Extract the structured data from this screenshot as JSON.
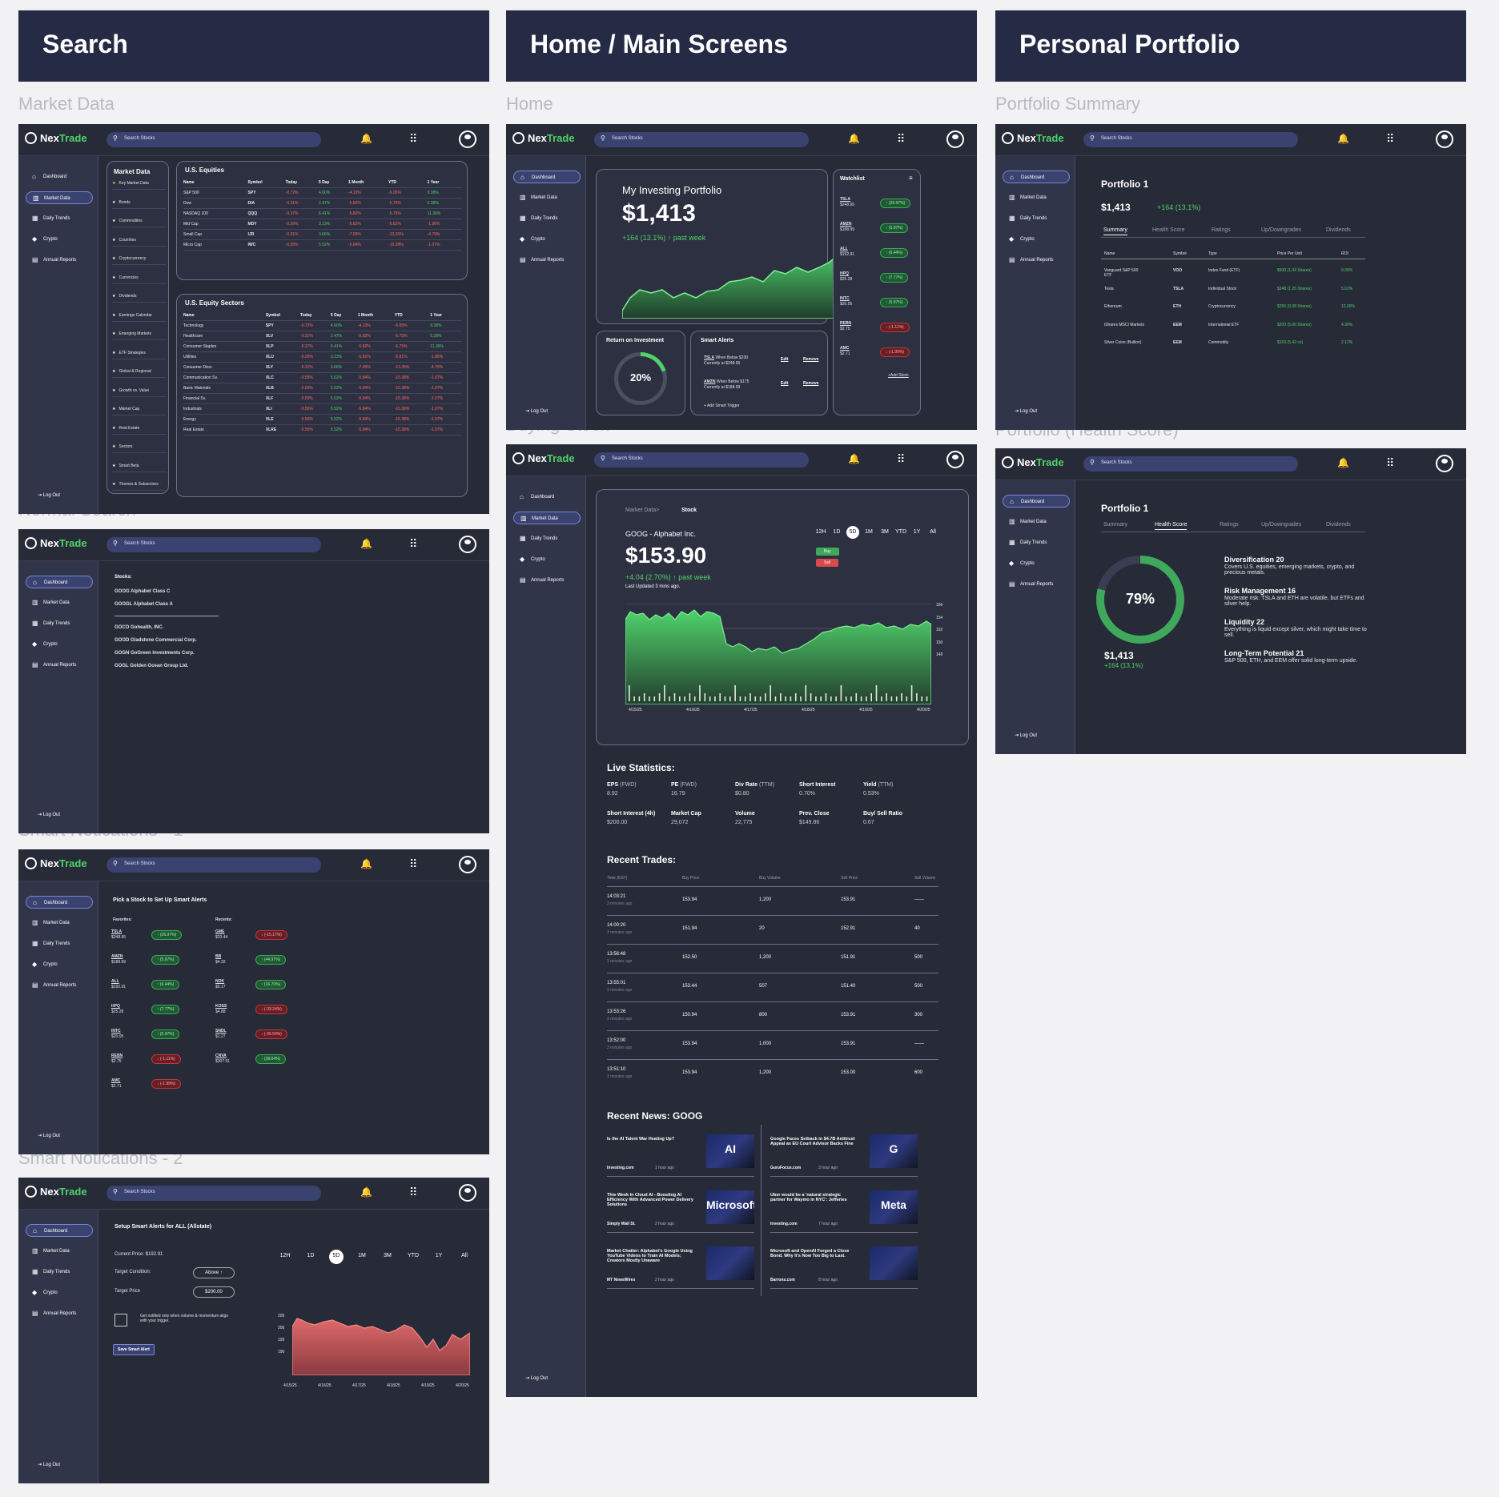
{
  "headers": {
    "search": "Search",
    "home": "Home / Main Screens",
    "portfolio": "Personal Portfolio"
  },
  "sections": {
    "market": "Market Data",
    "normal": "Normal Search",
    "smart1": "Smart Notications - 1",
    "smart2": "Smart Notications - 2",
    "home": "Home",
    "buying": "Buying Stock",
    "psummary": "Portfolio Summary",
    "phealth": "Portfolio (Health Score)"
  },
  "app": {
    "brand_a": "Nex",
    "brand_b": "Trade",
    "search_placeholder": "Search Stocks",
    "logout": "Log Out"
  },
  "nav": [
    "Dashboard",
    "Market Data",
    "Daily Trends",
    "Crypto",
    "Annual Reports"
  ],
  "market": {
    "title": "Market Data",
    "menu": [
      "Key Market Data",
      "Bonds",
      "Commodities",
      "Countries",
      "Cryptocurrency",
      "Currencies",
      "Dividends",
      "Earnings Calendar",
      "Emerging Markets",
      "ETF Strategies",
      "Global & Regional",
      "Growth vs. Value",
      "Market Cap",
      "Real Estate",
      "Sectors",
      "Smart Beta",
      "Themes & Subsectors"
    ],
    "equities_title": "U.S. Equities",
    "sectors_title": "U.S. Equity Sectors",
    "columns": [
      "Name",
      "Symbol",
      "Today",
      "5 Day",
      "1 Month",
      "YTD",
      "1 Year"
    ],
    "equities": [
      [
        "S&P 500",
        "SPY",
        "-0.72%",
        "4.60%",
        "-4.13%",
        "-6.05%",
        "9.38%"
      ],
      [
        "Dow",
        "DIA",
        "-0.21%",
        "2.47%",
        "-5.82%",
        "-5.75%",
        "5.38%"
      ],
      [
        "NASDAQ 100",
        "QQQ",
        "-0.37%",
        "6.41%",
        "-5.82%",
        "-5.75%",
        "11.36%"
      ],
      [
        "Mid Cap",
        "MDY",
        "-0.26%",
        "3.13%",
        "-5.81%",
        "-5.81%",
        "-1.96%"
      ],
      [
        "Small Cap",
        "IJR",
        "-0.31%",
        "3.66%",
        "-7.05%",
        "-13.35%",
        "-4.79%"
      ],
      [
        "Micro Cap",
        "IWC",
        "-0.55%",
        "5.52%",
        "-5.84%",
        "-15.38%",
        "-1.07%"
      ]
    ],
    "sectors": [
      [
        "Technology",
        "SPY",
        "-0.72%",
        "4.60%",
        "-4.13%",
        "-6.05%",
        "9.38%"
      ],
      [
        "Healthcare",
        "XLV",
        "-0.21%",
        "2.47%",
        "-5.82%",
        "-5.75%",
        "5.38%"
      ],
      [
        "Consumer Staples",
        "XLP",
        "-0.37%",
        "6.41%",
        "-5.82%",
        "-5.75%",
        "11.36%"
      ],
      [
        "Utilities",
        "XLU",
        "-0.26%",
        "3.13%",
        "-5.81%",
        "-5.81%",
        "-1.96%"
      ],
      [
        "Consumer Discr.",
        "XLY",
        "-0.31%",
        "3.66%",
        "-7.05%",
        "-13.35%",
        "-4.79%"
      ],
      [
        "Communication Sv.",
        "XLC",
        "-0.55%",
        "5.52%",
        "-5.84%",
        "-15.38%",
        "-1.07%"
      ],
      [
        "Basic Materials",
        "XLB",
        "-0.55%",
        "5.52%",
        "-5.84%",
        "-15.38%",
        "-1.07%"
      ],
      [
        "Financial Sv.",
        "XLF",
        "-0.55%",
        "5.52%",
        "-5.84%",
        "-15.38%",
        "-1.07%"
      ],
      [
        "Industrials",
        "XLI",
        "-0.55%",
        "5.52%",
        "-5.84%",
        "-15.38%",
        "-1.07%"
      ],
      [
        "Energy",
        "XLE",
        "-0.55%",
        "5.52%",
        "-5.84%",
        "-15.38%",
        "-1.07%"
      ],
      [
        "Real Estate",
        "XLRE",
        "-0.55%",
        "5.52%",
        "-5.84%",
        "-15.38%",
        "-1.07%"
      ]
    ]
  },
  "normal": {
    "stocks_label": "Stocks:",
    "top": [
      "GOOG Alphabet Class C",
      "GOOGL Alphabet Class A"
    ],
    "more": [
      "GOCO Gohealth, INC.",
      "GOOD Gladstone Commercial Corp.",
      "GOGN GoGreen Investments Corp.",
      "GOGL Golden Ocean Group Ltd."
    ]
  },
  "smart1": {
    "title": "Pick a Stock to Set Up Smart Alerts",
    "fav_label": "Favorites:",
    "rec_label": "Recents:",
    "favorites": [
      [
        "TSLA",
        "$248.95",
        "↑ (26.97%)",
        "g"
      ],
      [
        "AMZN",
        "$188.99",
        "↑ (5.97%)",
        "g"
      ],
      [
        "ALL",
        "$192.91",
        "↑ (6.44%)",
        "g"
      ],
      [
        "HPQ",
        "$25.28",
        "↑ (7.77%)",
        "g"
      ],
      [
        "INTC",
        "$20.05",
        "↑ (5.97%)",
        "g"
      ],
      [
        "REBN",
        "$2.75",
        "↓ (-1.11%)",
        "r"
      ],
      [
        "AMC",
        "$2.71",
        "↓ (-1.99%)",
        "r"
      ]
    ],
    "recents": [
      [
        "GME",
        "$23.44",
        "↓ (-15.17%)",
        "r"
      ],
      [
        "BB",
        "$4.32",
        "↑ (44.97%)",
        "g"
      ],
      [
        "NOK",
        "$5.17",
        "↑ (16.70%)",
        "g"
      ],
      [
        "KOSS",
        "$4.88",
        "↓ (-33.24%)",
        "r"
      ],
      [
        "SNDL",
        "$1.27",
        "↓ (-26.59%)",
        "r"
      ],
      [
        "CNVA",
        "$307.91",
        "↑ (38.04%)",
        "g"
      ]
    ]
  },
  "smart2": {
    "title": "Setup Smart Alerts for ALL (Allstate)",
    "price": "Current Price: $192.91",
    "cond_label": "Target Condition:",
    "cond_value": "Above ↑",
    "tp_label": "Target Price",
    "tp_value": "$200.00",
    "notify": "Get notified only when volume & momentum align with your trigger.",
    "save": "Save Smart Alert",
    "ranges": [
      "12H",
      "1D",
      "5D",
      "1M",
      "3M",
      "YTD",
      "1Y",
      "All"
    ],
    "yticks": [
      "205",
      "200",
      "195",
      "190"
    ],
    "xticks": [
      "4/15/25",
      "4/16/25",
      "4/17/25",
      "4/18/25",
      "4/19/25",
      "4/20/25"
    ]
  },
  "home": {
    "title": "My Investing Portfolio",
    "value": "$1,413",
    "change": "+164 (13.1%) ↑ past week",
    "roi_title": "Return on Investment",
    "roi": "20%",
    "alerts_title": "Smart Alerts",
    "alerts": [
      {
        "sym": "TSLA",
        "cond": "When Below $230",
        "cur": "Currently at $248.95"
      },
      {
        "sym": "AMZN",
        "cond": "When Below $175",
        "cur": "Currently at $188.99"
      }
    ],
    "edit": "Edit",
    "remove": "Remove",
    "add_trigger": "+  Add Smart Trigger",
    "watch_title": "Watchlist",
    "add_stock": "+Add Stock",
    "watch": [
      [
        "TSLA",
        "$248.95",
        "↑ (26.97%)",
        "g"
      ],
      [
        "AMZN",
        "$188.99",
        "↑ (5.97%)",
        "g"
      ],
      [
        "ALL",
        "$192.91",
        "↑ (6.44%)",
        "g"
      ],
      [
        "HPQ",
        "$25.28",
        "↑ (7.77%)",
        "g"
      ],
      [
        "INTC",
        "$20.05",
        "↑ (5.97%)",
        "g"
      ],
      [
        "REBN",
        "$2.75",
        "↓ (-1.11%)",
        "r"
      ],
      [
        "AMC",
        "$2.71",
        "↓ (-1.99%)",
        "r"
      ]
    ]
  },
  "stock": {
    "crumb1": "Market Data",
    "crumb_sep": ">",
    "crumb2": "Stock",
    "name": "GOOG - Alphabet Inc.",
    "price": "$153.90",
    "change": "+4.04 (2.70%) ↑ past week",
    "updated": "Last Updated 3 mins ago.",
    "buy": "Buy",
    "sell": "Sell",
    "ranges": [
      "12H",
      "1D",
      "5D",
      "1M",
      "3M",
      "YTD",
      "1Y",
      "All"
    ],
    "yticks": [
      "156",
      "154",
      "152",
      "150",
      "148"
    ],
    "xticks": [
      "4/15/25",
      "4/16/25",
      "4/17/25",
      "4/18/25",
      "4/19/25",
      "4/20/25"
    ],
    "live_title": "Live Statistics:",
    "stats": [
      [
        "EPS",
        "(FWD)",
        "8.92"
      ],
      [
        "PE",
        "(FWD)",
        "16.79"
      ],
      [
        "Div Rate",
        "(TTM)",
        "$0.80"
      ],
      [
        "Short Interest",
        "",
        "0.70%"
      ],
      [
        "Yield",
        "(TTM)",
        "0.53%"
      ],
      [
        "Short Interest (4h)",
        "",
        "$200.00"
      ],
      [
        "Market Cap",
        "",
        "29,072"
      ],
      [
        "Volume",
        "",
        "22,775"
      ],
      [
        "Prev. Close",
        "",
        "$149.86"
      ],
      [
        "Buy/ Sell Ratio",
        "",
        "0.67"
      ]
    ],
    "trades_title": "Recent Trades:",
    "trade_cols": [
      "Time (EST)",
      "Buy Price",
      "Buy Volume",
      "Sell Price",
      "Sell Volume"
    ],
    "trades": [
      [
        "14:03:21",
        "3 minutes ago",
        "153.94",
        "1,200",
        "153.91",
        "——"
      ],
      [
        "14:00:20",
        "3 minutes ago",
        "151.94",
        "20",
        "152.91",
        "40"
      ],
      [
        "13:56:48",
        "3 minutes ago",
        "152.50",
        "1,200",
        "151.91",
        "500"
      ],
      [
        "13:55:01",
        "3 minutes ago",
        "153.44",
        "507",
        "151.40",
        "500"
      ],
      [
        "13:53:26",
        "3 minutes ago",
        "150.94",
        "800",
        "153.91",
        "300"
      ],
      [
        "13:52:00",
        "3 minutes ago",
        "153.94",
        "1,000",
        "153.91",
        "——"
      ],
      [
        "13:51:10",
        "3 minutes ago",
        "153.94",
        "1,200",
        "153.00",
        "600"
      ]
    ],
    "news_title": "Recent News: GOOG",
    "news_left": [
      [
        "Is the AI Talent War Heating Up?",
        "Investing.com",
        "1 hour ago",
        "AI"
      ],
      [
        "This Week In Cloud AI - Boosting AI Efficiency With Advanced Power Delivery Solutions",
        "Simply Wall St.",
        "2 hour ago",
        "Microsoft"
      ],
      [
        "Market Chatter: Alphabet's Google Using YouTube Videos to Train AI Models; Creators Mostly Unaware",
        "MT NewsWires",
        "2 hour ago",
        ""
      ]
    ],
    "news_right": [
      [
        "Google Faces Setback in $4.7B Antitrust Appeal as EU Court Advisor Backs Fine",
        "GuruFocus.com",
        "3 hour ago",
        "G"
      ],
      [
        "Uber would be a 'natural strategic partner for Waymo in NYC': Jefferies",
        "Investing.com",
        "7 hour ago",
        "Meta"
      ],
      [
        "Microsoft and OpenAI Forged a Close Bond. Why It's Now Too Big to Last.",
        "Barrons.com",
        "8 hour ago",
        ""
      ]
    ]
  },
  "psum": {
    "portfolio": "Portfolio 1",
    "value": "$1,413",
    "change": "+164 (13.1%)",
    "tabs": [
      "Summary",
      "Health Score",
      "Ratings",
      "Up/Downgrades",
      "Dividends"
    ],
    "cols": [
      "Name",
      "Symbol",
      "Type",
      "Price Per Unit",
      "ROI"
    ],
    "rows": [
      [
        "Vanguard S&P 500 ETF",
        "VOO",
        "Index Fund (ETF)",
        "$500  (1.04 Shares)",
        "9.38%"
      ],
      [
        "Tesla",
        "TSLA",
        "Individual Stock",
        "$248  (1.25 Shares)",
        "5.62%"
      ],
      [
        "Ethereum",
        "ETH",
        "Cryptocurrency",
        "$250  (0.08 Shares)",
        "12.00%"
      ],
      [
        "iShares MSCI Markets",
        "EEM",
        "International ETF",
        "$200  (5.00 Shares)",
        "4.36%"
      ],
      [
        "Silver Coins (Bullion)",
        "EEM",
        "Commodity",
        "$163  (5.42 oz)",
        "2.12%"
      ]
    ]
  },
  "phealth": {
    "portfolio": "Portfolio 1",
    "tabs": [
      "Summary",
      "Health Score",
      "Ratings",
      "Up/Downgrades",
      "Dividends"
    ],
    "score": "79%",
    "score_value": 79,
    "value": "$1,413",
    "change": "+164 (13.1%)",
    "items": [
      [
        "Diversification 20",
        "Covers U.S. equities, emerging markets, crypto, and precious metals."
      ],
      [
        "Risk Management 16",
        "Moderate risk: TSLA and ETH are volatile, but ETFs and silver help."
      ],
      [
        "Liquidity 22",
        "Everything is liquid except silver, which might take time to sell."
      ],
      [
        "Long-Term Potential 21",
        "S&P 500, ETH, and EEM offer solid long-term upside."
      ]
    ]
  },
  "colors": {
    "header": "#252a45",
    "screen": "#272a37",
    "green": "#4fd26b",
    "red": "#ff6a6a"
  }
}
